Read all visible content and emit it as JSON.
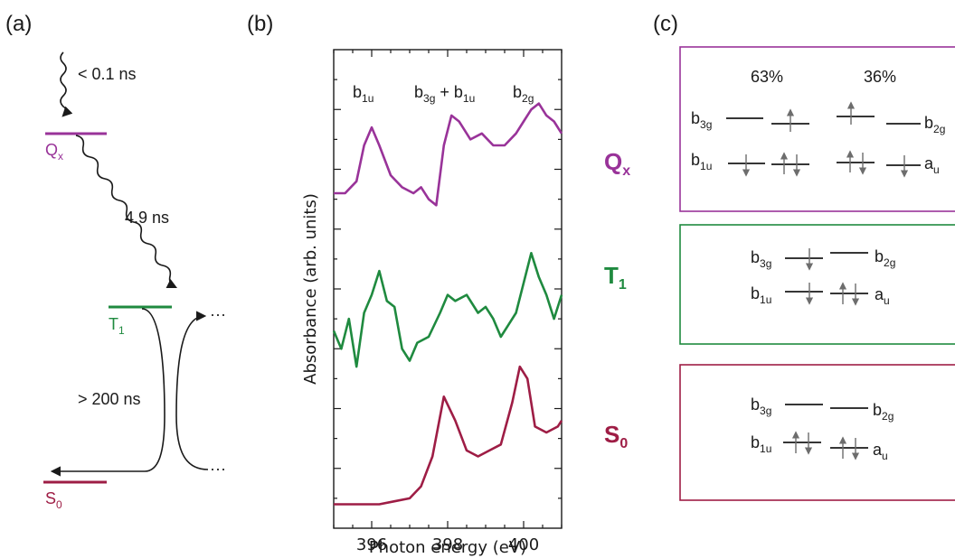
{
  "panel_labels": {
    "a": "(a)",
    "b": "(b)",
    "c": "(c)"
  },
  "colors": {
    "Qx": "#993399",
    "T1": "#1f8a3f",
    "S0": "#9e1d45",
    "ink": "#1a1a1a"
  },
  "panel_a": {
    "levels": {
      "Qx": {
        "base": "Q",
        "sub": "x"
      },
      "T1": {
        "base": "T",
        "sub": "1"
      },
      "S0": {
        "base": "S",
        "sub": "0"
      }
    },
    "times": {
      "excitation": "< 0.1 ns",
      "isc": "4.9 ns",
      "decay": "> 200 ns"
    },
    "ellipsis": "···"
  },
  "panel_b": {
    "peak_labels": [
      {
        "id": "b1u",
        "base": "b",
        "sub": "1u"
      },
      {
        "id": "b3g_b1u",
        "base": "b",
        "sub": "3g",
        "plus": " + b",
        "sub2": "1u"
      },
      {
        "id": "b2g",
        "base": "b",
        "sub": "2g"
      }
    ],
    "state_labels": [
      {
        "id": "Qx",
        "base": "Q",
        "sub": "x"
      },
      {
        "id": "T1",
        "base": "T",
        "sub": "1"
      },
      {
        "id": "S0",
        "base": "S",
        "sub": "0"
      }
    ]
  },
  "chart_data": {
    "type": "line",
    "xlabel": "Photon energy (eV)",
    "ylabel": "Absorbance (arb. units)",
    "xlim": [
      395.0,
      401.0
    ],
    "xticks": [
      "396",
      "398",
      "400"
    ],
    "series": [
      {
        "name": "Qx",
        "x": [
          395.0,
          395.3,
          395.6,
          395.8,
          396.0,
          396.2,
          396.5,
          396.8,
          397.1,
          397.3,
          397.5,
          397.7,
          397.9,
          398.1,
          398.3,
          398.6,
          398.9,
          399.2,
          399.5,
          399.8,
          400.0,
          400.2,
          400.4,
          400.6,
          400.8,
          401.0
        ],
        "y": [
          5.6,
          5.6,
          5.8,
          6.4,
          6.7,
          6.4,
          5.9,
          5.7,
          5.6,
          5.7,
          5.5,
          5.4,
          6.4,
          6.9,
          6.8,
          6.5,
          6.6,
          6.4,
          6.4,
          6.6,
          6.8,
          7.0,
          7.1,
          6.9,
          6.8,
          6.6
        ]
      },
      {
        "name": "T1",
        "x": [
          395.0,
          395.2,
          395.4,
          395.6,
          395.8,
          396.0,
          396.2,
          396.4,
          396.6,
          396.8,
          397.0,
          397.2,
          397.5,
          397.8,
          398.0,
          398.2,
          398.5,
          398.8,
          399.0,
          399.2,
          399.4,
          399.6,
          399.8,
          400.0,
          400.2,
          400.4,
          400.6,
          400.8,
          401.0
        ],
        "y": [
          3.3,
          3.0,
          3.5,
          2.7,
          3.6,
          3.9,
          4.3,
          3.8,
          3.7,
          3.0,
          2.8,
          3.1,
          3.2,
          3.6,
          3.9,
          3.8,
          3.9,
          3.6,
          3.7,
          3.5,
          3.2,
          3.4,
          3.6,
          4.1,
          4.6,
          4.2,
          3.9,
          3.5,
          3.9
        ]
      },
      {
        "name": "S0",
        "x": [
          395.0,
          395.4,
          395.8,
          396.2,
          396.6,
          397.0,
          397.3,
          397.6,
          397.9,
          398.2,
          398.5,
          398.8,
          399.1,
          399.4,
          399.7,
          399.9,
          400.1,
          400.3,
          400.6,
          400.9,
          401.0
        ],
        "y": [
          0.4,
          0.4,
          0.4,
          0.4,
          0.45,
          0.5,
          0.7,
          1.2,
          2.2,
          1.8,
          1.3,
          1.2,
          1.3,
          1.4,
          2.1,
          2.7,
          2.5,
          1.7,
          1.6,
          1.7,
          1.8
        ]
      }
    ]
  },
  "panel_c": {
    "boxes": [
      {
        "id": "Qx",
        "percents": [
          "63%",
          "36%"
        ],
        "orbitals": [
          "b",
          "b",
          "b",
          "a"
        ],
        "orbital_subs": [
          "3g",
          "1u",
          "2g",
          "u"
        ]
      },
      {
        "id": "T1",
        "orbitals": [
          "b",
          "b",
          "b",
          "a"
        ],
        "orbital_subs": [
          "3g",
          "1u",
          "2g",
          "u"
        ]
      },
      {
        "id": "S0",
        "orbitals": [
          "b",
          "b",
          "b",
          "a"
        ],
        "orbital_subs": [
          "3g",
          "1u",
          "2g",
          "u"
        ]
      }
    ]
  }
}
